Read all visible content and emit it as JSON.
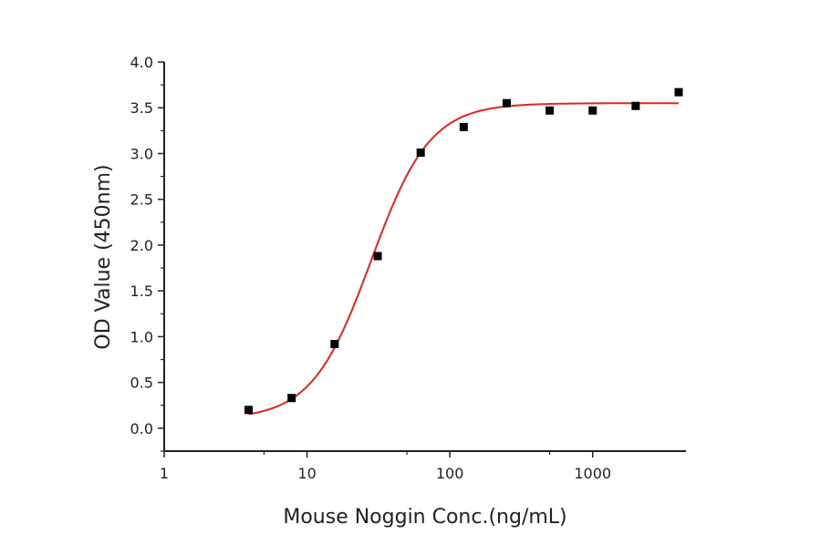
{
  "chart_data": {
    "type": "scatter",
    "title": "",
    "xlabel": "Mouse Noggin Conc.(ng/mL)",
    "ylabel": "OD Value (450nm)",
    "xscale": "log",
    "xlim": [
      1,
      4500
    ],
    "ylim": [
      -0.25,
      4.0
    ],
    "xticks": [
      1,
      10,
      100,
      1000
    ],
    "xtick_labels": [
      "1",
      "10",
      "100",
      "1000"
    ],
    "yticks": [
      0.0,
      0.5,
      1.0,
      1.5,
      2.0,
      2.5,
      3.0,
      3.5,
      4.0
    ],
    "ytick_labels": [
      "0.0",
      "0.5",
      "1.0",
      "1.5",
      "2.0",
      "2.5",
      "3.0",
      "3.5",
      "4.0"
    ],
    "grid": false,
    "series": [
      {
        "type": "scatter",
        "marker": "square",
        "color": "#000000",
        "x": [
          3.9,
          7.8,
          15.6,
          31.25,
          62.5,
          125,
          250,
          500,
          1000,
          2000,
          4000
        ],
        "y": [
          0.2,
          0.33,
          0.92,
          1.88,
          3.01,
          3.29,
          3.55,
          3.47,
          3.47,
          3.52,
          3.67
        ]
      },
      {
        "type": "line",
        "fit": "4PL",
        "color": "#e8231f",
        "params": {
          "bottom": 0.1,
          "top": 3.55,
          "ec50": 28,
          "hill": 2.1
        },
        "x_range": [
          3.9,
          4000
        ]
      }
    ]
  }
}
